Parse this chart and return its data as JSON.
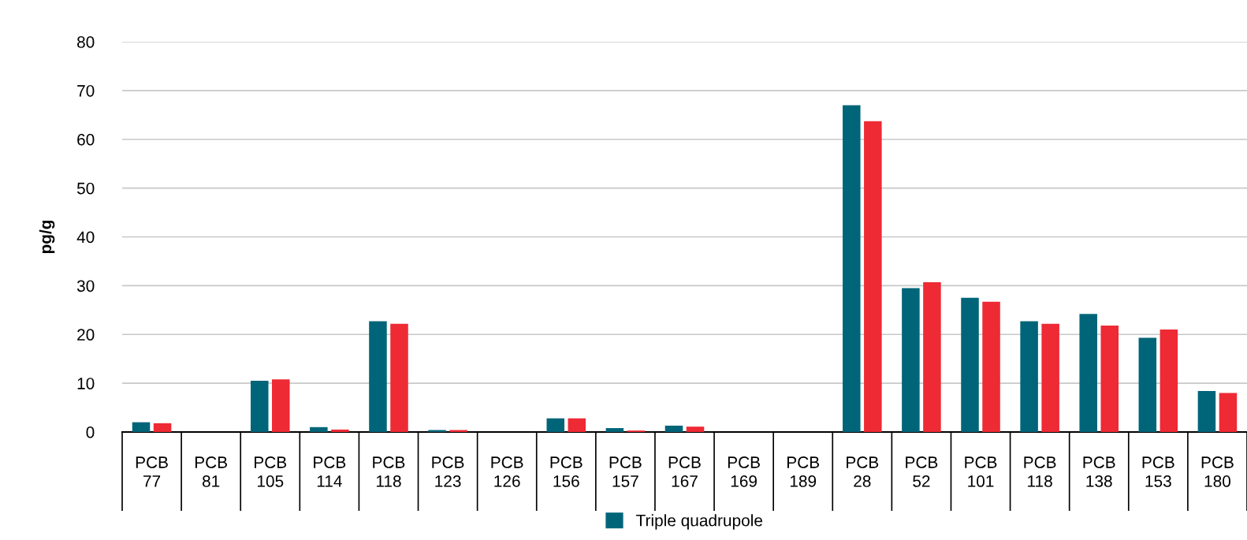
{
  "chart_data": {
    "type": "bar",
    "ylabel": "pg/g",
    "categories": [
      "PCB\n77",
      "PCB\n81",
      "PCB\n105",
      "PCB\n114",
      "PCB\n118",
      "PCB\n123",
      "PCB\n126",
      "PCB\n156",
      "PCB\n157",
      "PCB\n167",
      "PCB\n169",
      "PCB\n189",
      "PCB\n28",
      "PCB\n52",
      "PCB\n101",
      "PCB\n118",
      "PCB\n138",
      "PCB\n153",
      "PCB\n180"
    ],
    "series": [
      {
        "name": "Triple quadrupole",
        "color": "#006579",
        "values": [
          2.0,
          0,
          10.5,
          1.0,
          22.7,
          0.4,
          0,
          2.8,
          0.8,
          1.3,
          0,
          0,
          67,
          29.5,
          27.5,
          22.7,
          24.2,
          19.3,
          8.4
        ]
      },
      {
        "color": "#ee2a35",
        "values": [
          1.8,
          0,
          10.8,
          0.5,
          22.2,
          0.4,
          0,
          2.8,
          0.3,
          1.1,
          0,
          0,
          63.7,
          30.7,
          26.7,
          22.2,
          21.8,
          21.0,
          8.0
        ]
      }
    ],
    "ylim": [
      0,
      80
    ],
    "yticks": [
      0,
      10,
      20,
      30,
      40,
      50,
      60,
      70,
      80
    ],
    "grid": "y",
    "legend": "bottom"
  }
}
